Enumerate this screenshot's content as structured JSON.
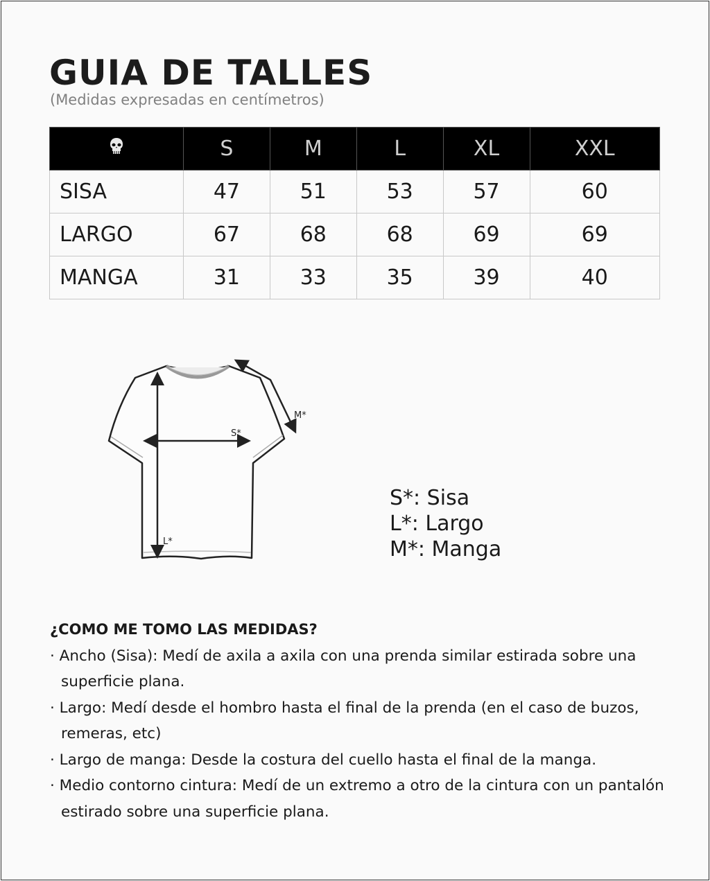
{
  "title": "GUIA DE TALLES",
  "subtitle": "(Medidas expresadas en centímetros)",
  "table": {
    "header_icon": "skull-icon",
    "sizes": [
      "S",
      "M",
      "L",
      "XL",
      "XXL"
    ],
    "rows": [
      {
        "label": "SISA",
        "values": [
          "47",
          "51",
          "53",
          "57",
          "60"
        ]
      },
      {
        "label": "LARGO",
        "values": [
          "67",
          "68",
          "68",
          "69",
          "69"
        ]
      },
      {
        "label": "MANGA",
        "values": [
          "31",
          "33",
          "35",
          "39",
          "40"
        ]
      }
    ]
  },
  "diagram": {
    "s_label": "S*",
    "l_label": "L*",
    "m_label": "M*"
  },
  "legend": [
    "S*: Sisa",
    "L*: Largo",
    "M*: Manga"
  ],
  "howto": {
    "heading": "¿COMO ME TOMO LAS MEDIDAS?",
    "items": [
      "· Ancho (Sisa): Medí de axila a axila con una prenda similar estirada sobre una superficie plana.",
      "· Largo: Medí desde el hombro hasta el final de la prenda (en el caso de buzos, remeras, etc)",
      "· Largo de manga: Desde la costura del cuello hasta el final de la manga.",
      "· Medio contorno cintura: Medí de un extremo a otro de la cintura con un pantalón estirado sobre una superficie plana."
    ]
  }
}
